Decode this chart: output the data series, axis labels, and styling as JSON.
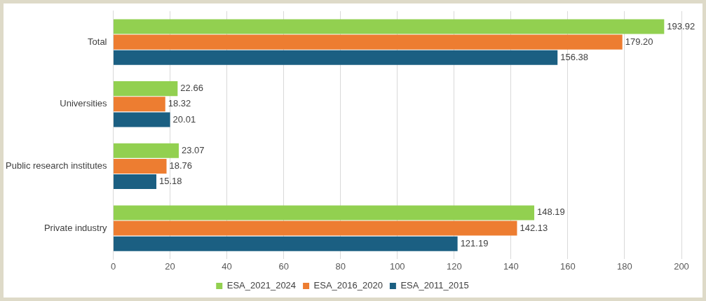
{
  "chart_data": {
    "type": "bar",
    "orientation": "horizontal",
    "categories": [
      "Total",
      "Universities",
      "Public research institutes",
      "Private industry"
    ],
    "series": [
      {
        "name": "ESA_2021_2024",
        "color": "#92d050",
        "values": [
          193.92,
          22.66,
          23.07,
          148.19
        ],
        "value_labels": [
          "193.92",
          "22.66",
          "23.07",
          "148.19"
        ]
      },
      {
        "name": "ESA_2016_2020",
        "color": "#ed7d31",
        "values": [
          179.2,
          18.32,
          18.76,
          142.13
        ],
        "value_labels": [
          "179.20",
          "18.32",
          "18.76",
          "142.13"
        ]
      },
      {
        "name": "ESA_2011_2015",
        "color": "#1b5f82",
        "values": [
          156.38,
          20.01,
          15.18,
          121.19
        ],
        "value_labels": [
          "156.38",
          "20.01",
          "15.18",
          "121.19"
        ]
      }
    ],
    "xlim": [
      0,
      200
    ],
    "xticks": [
      0,
      20,
      40,
      60,
      80,
      100,
      120,
      140,
      160,
      180,
      200
    ],
    "grid": "x",
    "legend": "bottom"
  }
}
